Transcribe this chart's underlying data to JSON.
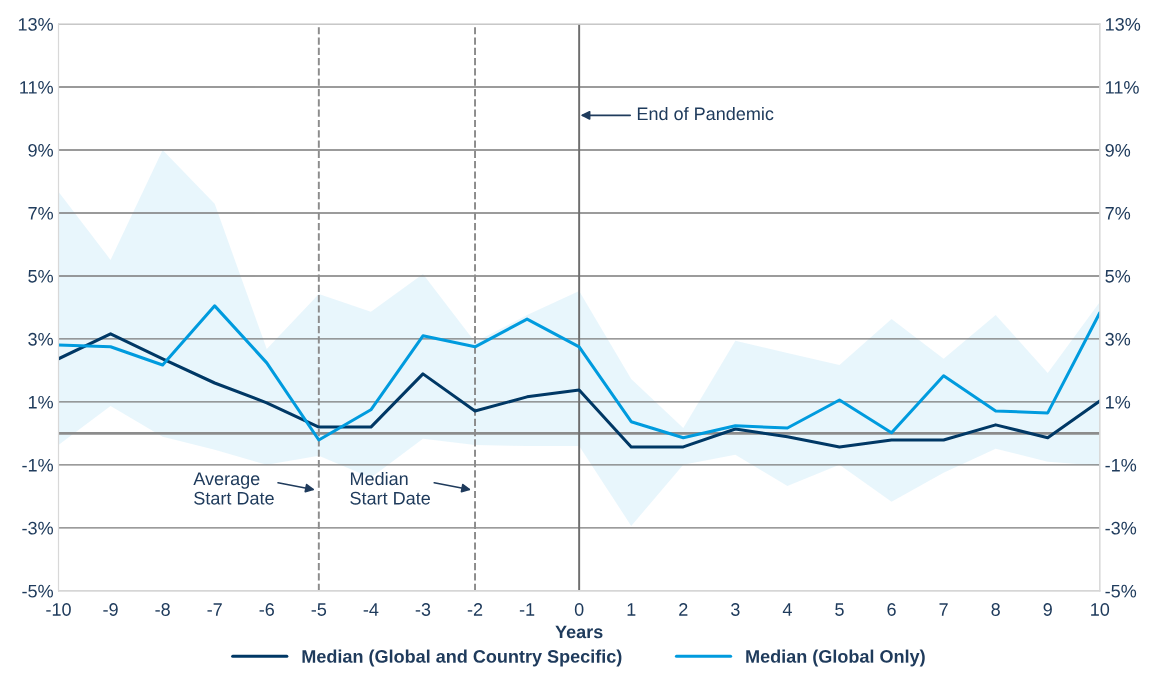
{
  "chart_data": {
    "type": "line",
    "xlabel": "Years",
    "x": [
      -10,
      -9,
      -8,
      -7,
      -6,
      -5,
      -4,
      -3,
      -2,
      -1,
      0,
      1,
      2,
      3,
      4,
      5,
      6,
      7,
      8,
      9,
      10
    ],
    "series": [
      {
        "name": "Median (Global and Country Specific)",
        "color": "#003865",
        "values": [
          2.37,
          3.16,
          2.37,
          1.6,
          0.97,
          0.2,
          0.2,
          1.89,
          0.71,
          1.16,
          1.38,
          -0.43,
          -0.43,
          0.14,
          -0.11,
          -0.43,
          -0.21,
          -0.21,
          0.27,
          -0.14,
          1.03
        ]
      },
      {
        "name": "Median (Global Only)",
        "color": "#009bde",
        "values": [
          2.81,
          2.75,
          2.17,
          4.05,
          2.24,
          -0.21,
          0.75,
          3.1,
          2.75,
          3.63,
          2.75,
          0.37,
          -0.14,
          0.24,
          0.17,
          1.06,
          0.02,
          1.83,
          0.71,
          0.65,
          3.83
        ],
        "lower": [
          -0.37,
          0.87,
          -0.11,
          -0.52,
          -1.0,
          -0.71,
          -1.41,
          -0.17,
          -0.37,
          -0.4,
          -0.4,
          -2.94,
          -1.0,
          -0.68,
          -1.67,
          -1.0,
          -2.17,
          -1.25,
          -0.49,
          -0.9,
          -1.03
        ],
        "upper": [
          7.67,
          5.51,
          9.0,
          7.29,
          2.68,
          4.43,
          3.86,
          5.06,
          2.9,
          3.76,
          4.52,
          1.73,
          0.17,
          2.94,
          2.55,
          2.17,
          3.63,
          2.37,
          3.76,
          1.92,
          4.17
        ]
      }
    ],
    "xlim": [
      -10,
      10
    ],
    "xticks": [
      -10,
      -9,
      -8,
      -7,
      -6,
      -5,
      -4,
      -3,
      -2,
      -1,
      0,
      1,
      2,
      3,
      4,
      5,
      6,
      7,
      8,
      9,
      10
    ],
    "ylim": [
      -5,
      13
    ],
    "yticks": [
      {
        "value": -5,
        "label": "-5%"
      },
      {
        "value": -3,
        "label": "-3%"
      },
      {
        "value": -1,
        "label": "-1%"
      },
      {
        "value": 1,
        "label": "1%"
      },
      {
        "value": 3,
        "label": "3%"
      },
      {
        "value": 5,
        "label": "5%"
      },
      {
        "value": 7,
        "label": "7%"
      },
      {
        "value": 9,
        "label": "9%"
      },
      {
        "value": 11,
        "label": "11%"
      },
      {
        "value": 13,
        "label": "13%"
      }
    ],
    "y2lim": [
      -5,
      13
    ],
    "y2ticks": [
      {
        "value": -5,
        "label": "-5%"
      },
      {
        "value": -3,
        "label": "-3%"
      },
      {
        "value": -1,
        "label": "-1%"
      },
      {
        "value": 1,
        "label": "1%"
      },
      {
        "value": 3,
        "label": "3%"
      },
      {
        "value": 5,
        "label": "5%"
      },
      {
        "value": 7,
        "label": "7%"
      },
      {
        "value": 9,
        "label": "9%"
      },
      {
        "value": 11,
        "label": "11%"
      },
      {
        "value": 13,
        "label": "13%"
      }
    ],
    "ref_lines": [
      {
        "axis": "x",
        "value": -5,
        "label": "Average\nStart Date",
        "line_style": "dashed",
        "color": "#8c8c8c"
      },
      {
        "axis": "x",
        "value": -2,
        "label": "Median\nStart Date",
        "line_style": "dashed",
        "color": "#8c8c8c"
      },
      {
        "axis": "x",
        "value": 0,
        "label": "End of Pandemic",
        "line_style": "solid",
        "color": "#6e6e6e"
      }
    ],
    "grid": "y",
    "legend": "bottom",
    "line_style": "solid",
    "marker": "none"
  }
}
